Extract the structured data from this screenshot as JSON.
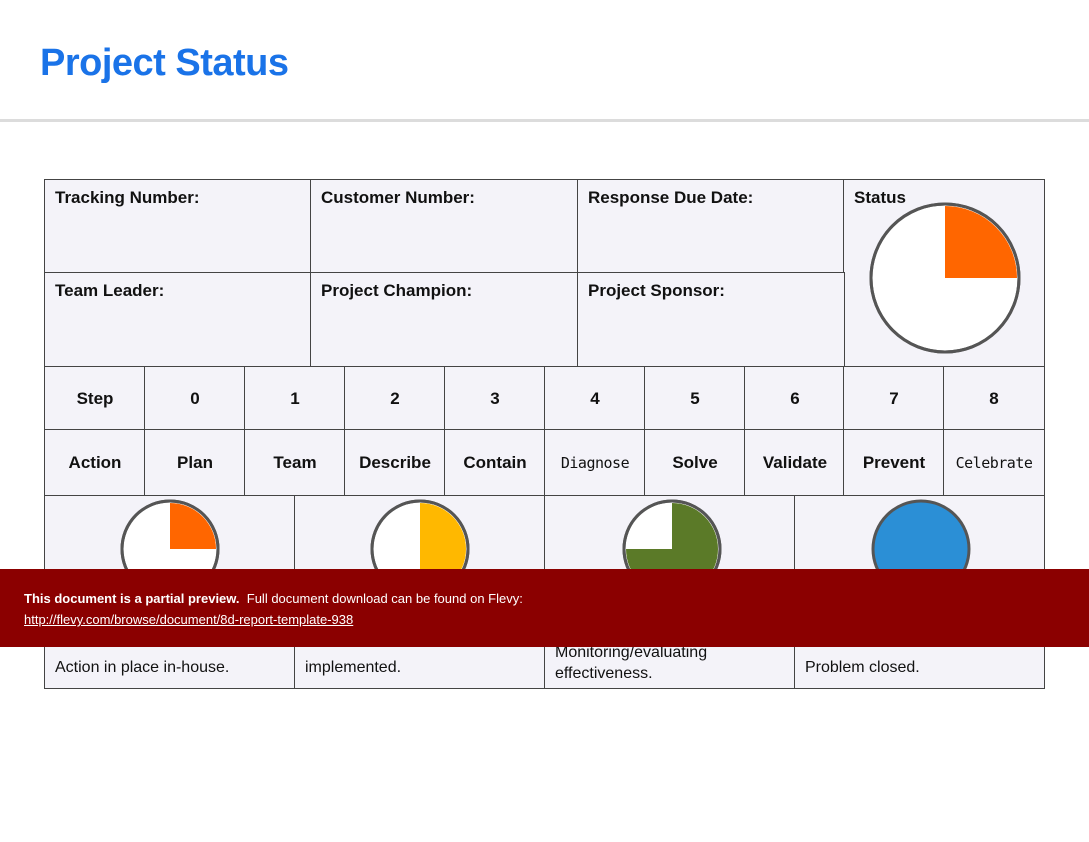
{
  "page": {
    "title": "Project Status"
  },
  "info_grid": {
    "tracking_number": "Tracking Number:",
    "customer_number": "Customer Number:",
    "response_due_date": "Response Due Date:",
    "status": "Status",
    "team_leader": "Team Leader:",
    "project_champion": "Project Champion:",
    "project_sponsor": "Project Sponsor:",
    "status_progress": 0.25,
    "status_color": "#ff6600"
  },
  "steps": {
    "step_header": "Step",
    "action_header": "Action",
    "numbers": [
      "0",
      "1",
      "2",
      "3",
      "4",
      "5",
      "6",
      "7",
      "8"
    ],
    "actions": [
      "Plan",
      "Team",
      "Describe",
      "Contain",
      "Diagnose",
      "Solve",
      "Validate",
      "Prevent",
      "Celebrate"
    ]
  },
  "status_levels": [
    {
      "progress": 0.25,
      "color": "#ff6600",
      "description": "Action in place in-house."
    },
    {
      "progress": 0.5,
      "color": "#ffb800",
      "description": "implemented."
    },
    {
      "progress": 0.75,
      "color": "#5b7a28",
      "description_line1": "Monitoring/evaluating",
      "description_line2": "effectiveness."
    },
    {
      "progress": 1.0,
      "color": "#2b8fd6",
      "description": "Problem closed."
    }
  ],
  "banner": {
    "bold_text": "This document is a partial preview.",
    "text": "Full document download can be found on Flevy:",
    "link": "http://flevy.com/browse/document/8d-report-template-938"
  }
}
